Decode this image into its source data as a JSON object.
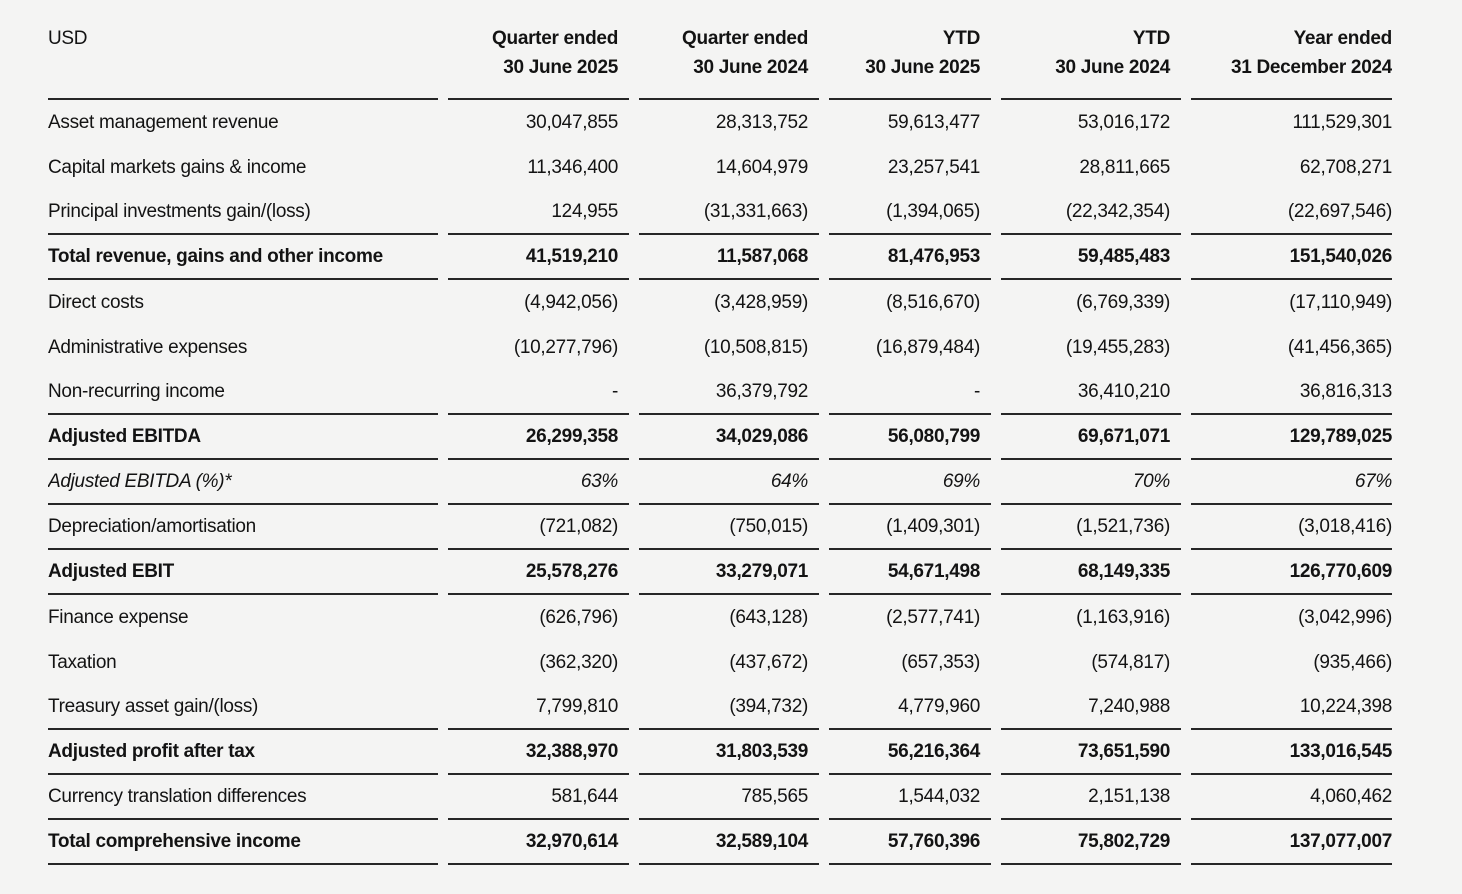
{
  "page": {
    "background_color": "#f4f4f3",
    "text_color": "#131313",
    "rule_color": "#262626"
  },
  "table": {
    "currency_label": "USD",
    "columns": [
      {
        "line1": "Quarter ended",
        "line2": "30 June 2025"
      },
      {
        "line1": "Quarter ended",
        "line2": "30 June 2024"
      },
      {
        "line1": "YTD",
        "line2": "30 June 2025"
      },
      {
        "line1": "YTD",
        "line2": "30 June 2024"
      },
      {
        "line1": "Year ended",
        "line2": "31 December 2024"
      }
    ],
    "rows": [
      {
        "label": "Asset management revenue",
        "style": "normal",
        "rule_below": false,
        "values": [
          "30,047,855",
          "28,313,752",
          "59,613,477",
          "53,016,172",
          "111,529,301"
        ]
      },
      {
        "label": "Capital markets gains & income",
        "style": "normal",
        "rule_below": false,
        "values": [
          "11,346,400",
          "14,604,979",
          "23,257,541",
          "28,811,665",
          "62,708,271"
        ]
      },
      {
        "label": "Principal investments gain/(loss)",
        "style": "normal",
        "rule_below": true,
        "values": [
          "124,955",
          "(31,331,663)",
          "(1,394,065)",
          "(22,342,354)",
          "(22,697,546)"
        ]
      },
      {
        "label": "Total revenue, gains and other income",
        "style": "bold",
        "rule_below": true,
        "values": [
          "41,519,210",
          "11,587,068",
          "81,476,953",
          "59,485,483",
          "151,540,026"
        ]
      },
      {
        "label": "Direct costs",
        "style": "normal",
        "rule_below": false,
        "values": [
          "(4,942,056)",
          "(3,428,959)",
          "(8,516,670)",
          "(6,769,339)",
          "(17,110,949)"
        ]
      },
      {
        "label": "Administrative expenses",
        "style": "normal",
        "rule_below": false,
        "values": [
          "(10,277,796)",
          "(10,508,815)",
          "(16,879,484)",
          "(19,455,283)",
          "(41,456,365)"
        ]
      },
      {
        "label": "Non-recurring income",
        "style": "normal",
        "rule_below": true,
        "values": [
          "-",
          "36,379,792",
          "-",
          "36,410,210",
          "36,816,313"
        ]
      },
      {
        "label": "Adjusted EBITDA",
        "style": "bold",
        "rule_below": true,
        "values": [
          "26,299,358",
          "34,029,086",
          "56,080,799",
          "69,671,071",
          "129,789,025"
        ]
      },
      {
        "label": "Adjusted EBITDA (%)*",
        "style": "italic",
        "rule_below": true,
        "values": [
          "63%",
          "64%",
          "69%",
          "70%",
          "67%"
        ]
      },
      {
        "label": "Depreciation/amortisation",
        "style": "normal",
        "rule_below": true,
        "values": [
          "(721,082)",
          "(750,015)",
          "(1,409,301)",
          "(1,521,736)",
          "(3,018,416)"
        ]
      },
      {
        "label": "Adjusted EBIT",
        "style": "bold",
        "rule_below": true,
        "values": [
          "25,578,276",
          "33,279,071",
          "54,671,498",
          "68,149,335",
          "126,770,609"
        ]
      },
      {
        "label": "Finance expense",
        "style": "normal",
        "rule_below": false,
        "values": [
          "(626,796)",
          "(643,128)",
          "(2,577,741)",
          "(1,163,916)",
          "(3,042,996)"
        ]
      },
      {
        "label": "Taxation",
        "style": "normal",
        "rule_below": false,
        "values": [
          "(362,320)",
          "(437,672)",
          "(657,353)",
          "(574,817)",
          "(935,466)"
        ]
      },
      {
        "label": "Treasury asset gain/(loss)",
        "style": "normal",
        "rule_below": true,
        "values": [
          "7,799,810",
          "(394,732)",
          "4,779,960",
          "7,240,988",
          "10,224,398"
        ]
      },
      {
        "label": "Adjusted profit after tax",
        "style": "bold",
        "rule_below": true,
        "values": [
          "32,388,970",
          "31,803,539",
          "56,216,364",
          "73,651,590",
          "133,016,545"
        ]
      },
      {
        "label": "Currency translation differences",
        "style": "normal",
        "rule_below": true,
        "values": [
          "581,644",
          "785,565",
          "1,544,032",
          "2,151,138",
          "4,060,462"
        ]
      },
      {
        "label": "Total comprehensive income",
        "style": "bold",
        "rule_below": true,
        "values": [
          "32,970,614",
          "32,589,104",
          "57,760,396",
          "75,802,729",
          "137,077,007"
        ]
      }
    ]
  }
}
